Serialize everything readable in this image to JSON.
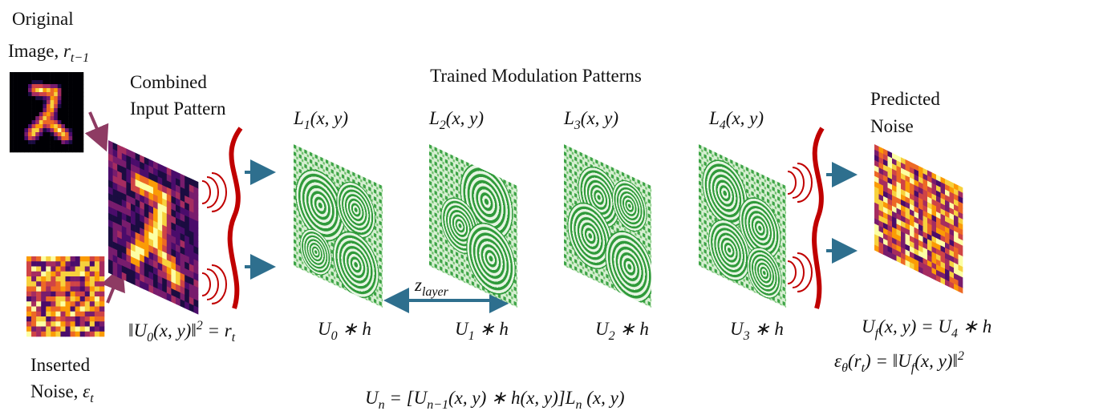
{
  "texts": {
    "original_1": [
      {
        "t": "Original"
      }
    ],
    "original_2": [
      {
        "t": "Image, "
      },
      {
        "m": "r"
      },
      {
        "sub": "t−1"
      }
    ],
    "combined_1": [
      {
        "t": "Combined"
      }
    ],
    "combined_2": [
      {
        "t": "Input Pattern"
      }
    ],
    "trained": [
      {
        "t": "Trained Modulation Patterns"
      }
    ],
    "l1": [
      {
        "m": "L"
      },
      {
        "sub": "1"
      },
      {
        "m": "(x, y)"
      }
    ],
    "l2": [
      {
        "m": "L"
      },
      {
        "sub": "2"
      },
      {
        "m": "(x, y)"
      }
    ],
    "l3": [
      {
        "m": "L"
      },
      {
        "sub": "3"
      },
      {
        "m": "(x, y)"
      }
    ],
    "l4": [
      {
        "m": "L"
      },
      {
        "sub": "4"
      },
      {
        "m": "(x, y)"
      }
    ],
    "predicted_1": [
      {
        "t": "Predicted"
      }
    ],
    "predicted_2": [
      {
        "t": "Noise"
      }
    ],
    "inserted_1": [
      {
        "t": "Inserted"
      }
    ],
    "inserted_2": [
      {
        "t": "Noise, "
      },
      {
        "m": "ε"
      },
      {
        "sub": "t"
      }
    ],
    "u0_norm": [
      {
        "m": "‖U"
      },
      {
        "sub": "0"
      },
      {
        "m": "(x, y)‖"
      },
      {
        "sup": "2"
      },
      {
        "m": " = r"
      },
      {
        "sub": "t"
      }
    ],
    "z_layer": [
      {
        "m": "z"
      },
      {
        "sub": "layer"
      }
    ],
    "u0h": [
      {
        "m": "U"
      },
      {
        "sub": "0"
      },
      {
        "m": " ∗ h"
      }
    ],
    "u1h": [
      {
        "m": "U"
      },
      {
        "sub": "1"
      },
      {
        "m": " ∗ h"
      }
    ],
    "u2h": [
      {
        "m": "U"
      },
      {
        "sub": "2"
      },
      {
        "m": " ∗ h"
      }
    ],
    "u3h": [
      {
        "m": "U"
      },
      {
        "sub": "3"
      },
      {
        "m": " ∗ h"
      }
    ],
    "uf": [
      {
        "m": "U"
      },
      {
        "sub": "f"
      },
      {
        "m": "(x, y) = U"
      },
      {
        "sub": "4"
      },
      {
        "m": " ∗ h"
      }
    ],
    "eps": [
      {
        "m": "ε"
      },
      {
        "sub": "θ"
      },
      {
        "m": "(r"
      },
      {
        "sub": "t"
      },
      {
        "m": ") = ‖U"
      },
      {
        "sub": "f"
      },
      {
        "m": "(x, y)‖"
      },
      {
        "sup": "2"
      }
    ],
    "un": [
      {
        "m": "U"
      },
      {
        "sub": "n"
      },
      {
        "m": " = [U"
      },
      {
        "sub": "n−1"
      },
      {
        "m": "(x, y) ∗ h(x, y)]L"
      },
      {
        "sub": "n"
      },
      {
        "m": " (x, y)"
      }
    ]
  }
}
